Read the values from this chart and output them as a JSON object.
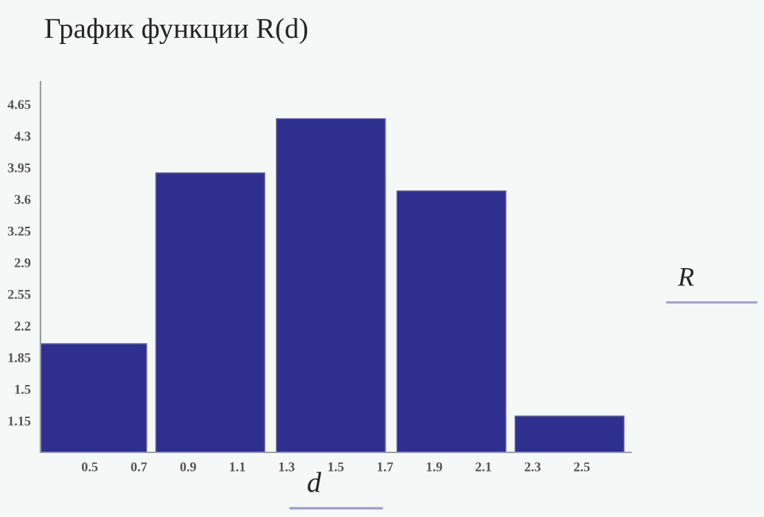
{
  "chart_data": {
    "type": "bar",
    "title": "График функции R(d)",
    "xlabel": "d",
    "ylabel": "R",
    "x": [
      0.51,
      0.99,
      1.48,
      1.97,
      2.45
    ],
    "values": [
      2.0,
      3.89,
      4.49,
      3.69,
      1.2
    ],
    "color": "#2e2f8e",
    "xlim": [
      0.3,
      2.7
    ],
    "xticks": [
      0.5,
      0.7,
      0.9,
      1.1,
      1.3,
      1.5,
      1.7,
      1.9,
      2.1,
      2.3,
      2.5
    ],
    "ylim": [
      0.8,
      4.9
    ],
    "yticks": [
      1.15,
      1.5,
      1.85,
      2.2,
      2.55,
      2.9,
      3.25,
      3.6,
      3.95,
      4.3,
      4.65
    ],
    "grid": false,
    "legend": false
  }
}
